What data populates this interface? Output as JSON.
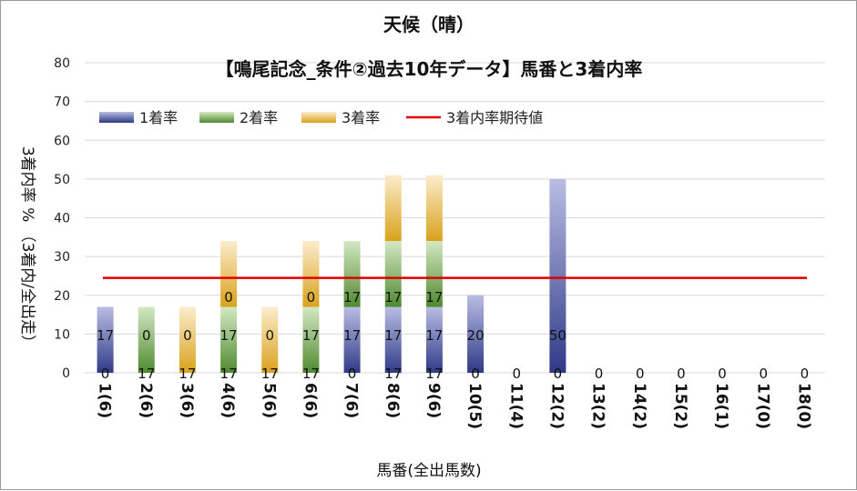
{
  "chart_data": {
    "type": "bar",
    "stacked": true,
    "title": "天候（晴）",
    "subtitle": "【鳴尾記念_条件②過去10年データ】馬番と3着内率",
    "xlabel": "馬番(全出馬数)",
    "ylabel": "3着内率 % （3着内/全出走）",
    "ylim": [
      0,
      80
    ],
    "yticks": [
      0,
      10,
      20,
      30,
      40,
      50,
      60,
      70,
      80
    ],
    "grid": true,
    "legend_position": "top-left",
    "categories": [
      "1(6)",
      "2(6)",
      "3(6)",
      "4(6)",
      "5(6)",
      "6(6)",
      "7(6)",
      "8(6)",
      "9(6)",
      "10(5)",
      "11(4)",
      "12(2)",
      "13(2)",
      "14(2)",
      "15(2)",
      "16(1)",
      "17(0)",
      "18(0)"
    ],
    "series": [
      {
        "name": "1着率",
        "color": "#2e3a87",
        "values": [
          17,
          0,
          0,
          0,
          0,
          0,
          17,
          17,
          17,
          20,
          0,
          50,
          0,
          0,
          0,
          0,
          0,
          0
        ]
      },
      {
        "name": "2着率",
        "color": "#4f8a2f",
        "values": [
          0,
          17,
          0,
          17,
          0,
          17,
          17,
          17,
          17,
          0,
          0,
          0,
          0,
          0,
          0,
          0,
          0,
          0
        ]
      },
      {
        "name": "3着率",
        "color": "#d9a21b",
        "values": [
          0,
          0,
          17,
          17,
          17,
          17,
          0,
          17,
          17,
          0,
          0,
          0,
          0,
          0,
          0,
          0,
          0,
          0
        ]
      }
    ],
    "data_labels": [
      [
        "0",
        "17"
      ],
      [
        "17",
        "0"
      ],
      [
        "17",
        "0"
      ],
      [
        "17",
        "17",
        "0"
      ],
      [
        "17",
        "0"
      ],
      [
        "17",
        "17",
        "0"
      ],
      [
        "0",
        "17",
        "17"
      ],
      [
        "17",
        "17",
        "17"
      ],
      [
        "17",
        "17",
        "17"
      ],
      [
        "0",
        "20"
      ],
      [
        "0"
      ],
      [
        "0",
        "50"
      ],
      [
        "0"
      ],
      [
        "0"
      ],
      [
        "0"
      ],
      [
        "0"
      ],
      [
        "0"
      ],
      [
        "0"
      ]
    ],
    "reference_line": {
      "name": "3着内率期待値",
      "value": 24.5,
      "color": "#e00000"
    }
  }
}
